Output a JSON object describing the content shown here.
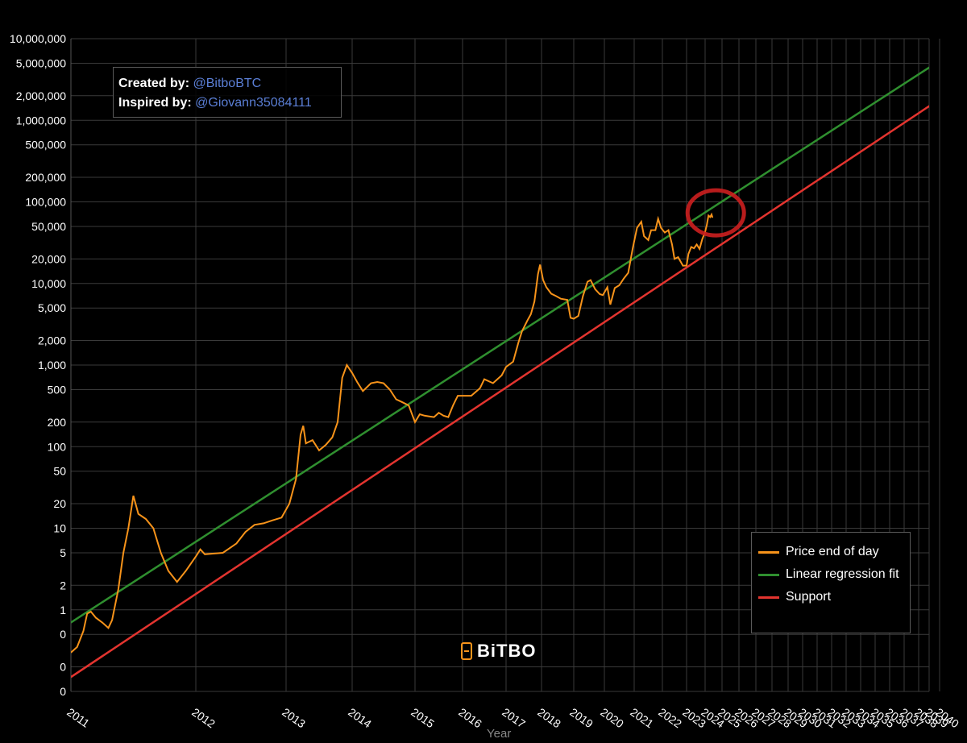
{
  "credits": {
    "created_label": "Created by:",
    "created_handle": "@BitboBTC",
    "inspired_label": "Inspired by:",
    "inspired_handle": "@Giovann35084111"
  },
  "logo": {
    "text": "BiTBO"
  },
  "colors": {
    "price": "#f7931a",
    "regression": "#2f8f2f",
    "support": "#e3342f",
    "highlight": "#cc1f1f",
    "grid": "#3a3a3a"
  },
  "chart_data": {
    "type": "line",
    "xlabel": "Year",
    "ylabel": "",
    "y_scale": "log",
    "x_ticks": [
      "2011",
      "2012",
      "2013",
      "2014",
      "2015",
      "2016",
      "2017",
      "2018",
      "2019",
      "2020",
      "2021",
      "2022",
      "2023",
      "2024",
      "2025",
      "2026",
      "2027",
      "2028",
      "2029",
      "2030",
      "2031",
      "2032",
      "2033",
      "2034",
      "2035",
      "2036",
      "2037",
      "2038",
      "2039",
      "2040"
    ],
    "y_ticks": [
      {
        "label": "10,000,000",
        "value": 10000000
      },
      {
        "label": "5,000,000",
        "value": 5000000
      },
      {
        "label": "2,000,000",
        "value": 2000000
      },
      {
        "label": "1,000,000",
        "value": 1000000
      },
      {
        "label": "500,000",
        "value": 500000
      },
      {
        "label": "200,000",
        "value": 200000
      },
      {
        "label": "100,000",
        "value": 100000
      },
      {
        "label": "50,000",
        "value": 50000
      },
      {
        "label": "20,000",
        "value": 20000
      },
      {
        "label": "10,000",
        "value": 10000
      },
      {
        "label": "5,000",
        "value": 5000
      },
      {
        "label": "2,000",
        "value": 2000
      },
      {
        "label": "1,000",
        "value": 1000
      },
      {
        "label": "500",
        "value": 500
      },
      {
        "label": "200",
        "value": 200
      },
      {
        "label": "100",
        "value": 100
      },
      {
        "label": "50",
        "value": 50
      },
      {
        "label": "20",
        "value": 20
      },
      {
        "label": "10",
        "value": 10
      },
      {
        "label": "5",
        "value": 5
      },
      {
        "label": "2",
        "value": 2
      },
      {
        "label": "1",
        "value": 1
      },
      {
        "label": "0",
        "value": 0.5
      },
      {
        "label": "0",
        "value": 0.2
      },
      {
        "label": "0",
        "value": 0.1
      }
    ],
    "ylim": [
      0.1,
      10000000
    ],
    "series": [
      {
        "name": "Price end of day",
        "points": [
          [
            2011.0,
            0.3
          ],
          [
            2011.05,
            0.35
          ],
          [
            2011.1,
            0.55
          ],
          [
            2011.13,
            0.9
          ],
          [
            2011.16,
            0.95
          ],
          [
            2011.2,
            0.8
          ],
          [
            2011.25,
            0.7
          ],
          [
            2011.3,
            0.6
          ],
          [
            2011.33,
            0.75
          ],
          [
            2011.38,
            1.8
          ],
          [
            2011.42,
            5
          ],
          [
            2011.46,
            10
          ],
          [
            2011.5,
            25
          ],
          [
            2011.54,
            15
          ],
          [
            2011.6,
            13
          ],
          [
            2011.66,
            10
          ],
          [
            2011.72,
            5
          ],
          [
            2011.78,
            3
          ],
          [
            2011.85,
            2.2
          ],
          [
            2011.92,
            3
          ],
          [
            2012.0,
            4.5
          ],
          [
            2012.05,
            5.5
          ],
          [
            2012.1,
            4.8
          ],
          [
            2012.2,
            4.9
          ],
          [
            2012.3,
            5.0
          ],
          [
            2012.45,
            6.5
          ],
          [
            2012.55,
            9
          ],
          [
            2012.65,
            11
          ],
          [
            2012.75,
            11.5
          ],
          [
            2012.85,
            12.5
          ],
          [
            2012.95,
            13.5
          ],
          [
            2013.05,
            20
          ],
          [
            2013.15,
            40
          ],
          [
            2013.22,
            140
          ],
          [
            2013.26,
            180
          ],
          [
            2013.3,
            110
          ],
          [
            2013.4,
            120
          ],
          [
            2013.5,
            90
          ],
          [
            2013.6,
            105
          ],
          [
            2013.7,
            130
          ],
          [
            2013.78,
            200
          ],
          [
            2013.85,
            700
          ],
          [
            2013.92,
            1000
          ],
          [
            2014.0,
            800
          ],
          [
            2014.08,
            620
          ],
          [
            2014.17,
            480
          ],
          [
            2014.3,
            600
          ],
          [
            2014.4,
            620
          ],
          [
            2014.5,
            600
          ],
          [
            2014.6,
            500
          ],
          [
            2014.7,
            380
          ],
          [
            2014.8,
            350
          ],
          [
            2014.9,
            320
          ],
          [
            2015.0,
            200
          ],
          [
            2015.1,
            250
          ],
          [
            2015.2,
            240
          ],
          [
            2015.3,
            235
          ],
          [
            2015.4,
            230
          ],
          [
            2015.5,
            260
          ],
          [
            2015.6,
            240
          ],
          [
            2015.7,
            230
          ],
          [
            2015.8,
            320
          ],
          [
            2015.9,
            420
          ],
          [
            2016.0,
            420
          ],
          [
            2016.2,
            420
          ],
          [
            2016.4,
            520
          ],
          [
            2016.5,
            670
          ],
          [
            2016.7,
            600
          ],
          [
            2016.9,
            750
          ],
          [
            2017.0,
            950
          ],
          [
            2017.2,
            1100
          ],
          [
            2017.35,
            1900
          ],
          [
            2017.45,
            2600
          ],
          [
            2017.6,
            3500
          ],
          [
            2017.7,
            4200
          ],
          [
            2017.8,
            6000
          ],
          [
            2017.9,
            13000
          ],
          [
            2017.96,
            17000
          ],
          [
            2018.05,
            11000
          ],
          [
            2018.15,
            9000
          ],
          [
            2018.3,
            7500
          ],
          [
            2018.45,
            7000
          ],
          [
            2018.6,
            6500
          ],
          [
            2018.8,
            6300
          ],
          [
            2018.9,
            3800
          ],
          [
            2019.0,
            3700
          ],
          [
            2019.15,
            4000
          ],
          [
            2019.3,
            7000
          ],
          [
            2019.45,
            10500
          ],
          [
            2019.55,
            11000
          ],
          [
            2019.7,
            8500
          ],
          [
            2019.85,
            7400
          ],
          [
            2019.95,
            7200
          ],
          [
            2020.1,
            9000
          ],
          [
            2020.2,
            5500
          ],
          [
            2020.35,
            8800
          ],
          [
            2020.5,
            9500
          ],
          [
            2020.65,
            11500
          ],
          [
            2020.8,
            13500
          ],
          [
            2020.95,
            27000
          ],
          [
            2021.1,
            48000
          ],
          [
            2021.25,
            57000
          ],
          [
            2021.35,
            38000
          ],
          [
            2021.5,
            34000
          ],
          [
            2021.6,
            45000
          ],
          [
            2021.75,
            45000
          ],
          [
            2021.85,
            62000
          ],
          [
            2021.95,
            48000
          ],
          [
            2022.1,
            42000
          ],
          [
            2022.25,
            45000
          ],
          [
            2022.4,
            30000
          ],
          [
            2022.5,
            20000
          ],
          [
            2022.65,
            21000
          ],
          [
            2022.85,
            16500
          ],
          [
            2023.0,
            16600
          ],
          [
            2023.1,
            23000
          ],
          [
            2023.25,
            28000
          ],
          [
            2023.4,
            27000
          ],
          [
            2023.55,
            30000
          ],
          [
            2023.7,
            26500
          ],
          [
            2023.85,
            35000
          ],
          [
            2023.99,
            42000
          ],
          [
            2024.1,
            52000
          ],
          [
            2024.2,
            68000
          ],
          [
            2024.3,
            65000
          ],
          [
            2024.38,
            70000
          ],
          [
            2024.44,
            64000
          ]
        ]
      },
      {
        "name": "Linear regression fit",
        "line": [
          [
            2011.0,
            0.7
          ],
          [
            2039.2,
            4600000
          ]
        ]
      },
      {
        "name": "Support",
        "line": [
          [
            2011.0,
            0.15
          ],
          [
            2039.2,
            1550000
          ]
        ]
      }
    ],
    "legend_position": "bottom-right",
    "grid": true
  }
}
